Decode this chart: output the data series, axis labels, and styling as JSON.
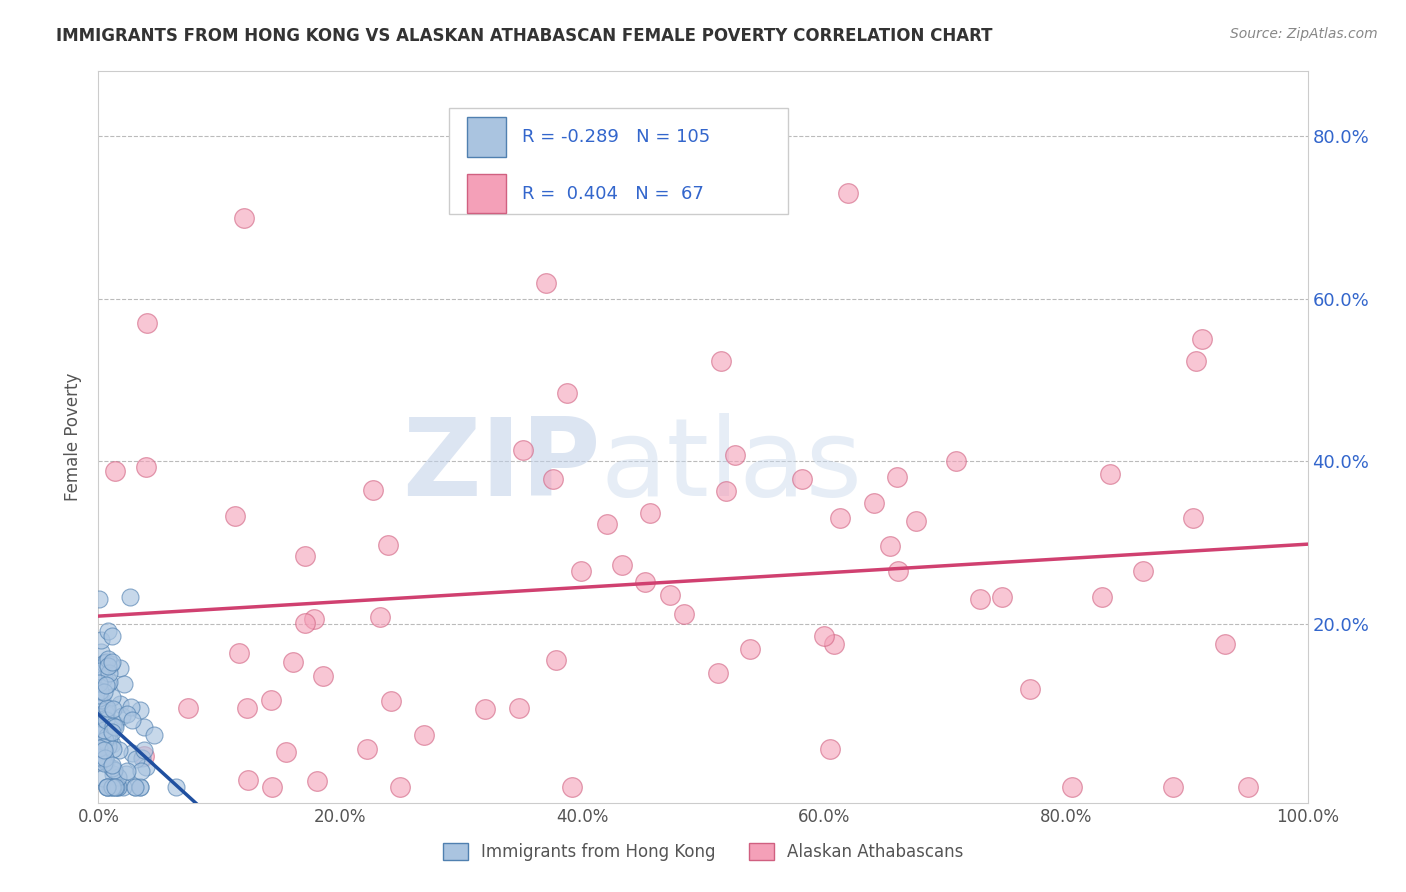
{
  "title": "IMMIGRANTS FROM HONG KONG VS ALASKAN ATHABASCAN FEMALE POVERTY CORRELATION CHART",
  "source": "Source: ZipAtlas.com",
  "ylabel": "Female Poverty",
  "xlim": [
    0.0,
    1.0
  ],
  "ylim": [
    -0.02,
    0.88
  ],
  "xtick_labels": [
    "0.0%",
    "20.0%",
    "40.0%",
    "60.0%",
    "80.0%",
    "100.0%"
  ],
  "xtick_vals": [
    0.0,
    0.2,
    0.4,
    0.6,
    0.8,
    1.0
  ],
  "ytick_labels": [
    "20.0%",
    "40.0%",
    "60.0%",
    "80.0%"
  ],
  "ytick_vals": [
    0.2,
    0.4,
    0.6,
    0.8
  ],
  "legend_labels": [
    "Immigrants from Hong Kong",
    "Alaskan Athabascans"
  ],
  "R_blue": -0.289,
  "N_blue": 105,
  "R_pink": 0.404,
  "N_pink": 67,
  "blue_color": "#aac4e0",
  "pink_color": "#f4a0b8",
  "blue_edge": "#5080b0",
  "pink_edge": "#d06080",
  "blue_line": "#2050a0",
  "pink_line": "#d04070",
  "watermark_zip": "ZIP",
  "watermark_atlas": "atlas",
  "watermark_color_zip": "#b8cce4",
  "watermark_color_atlas": "#b8cce4",
  "title_color": "#333333",
  "source_color": "#888888",
  "background_color": "#ffffff",
  "seed": 12
}
